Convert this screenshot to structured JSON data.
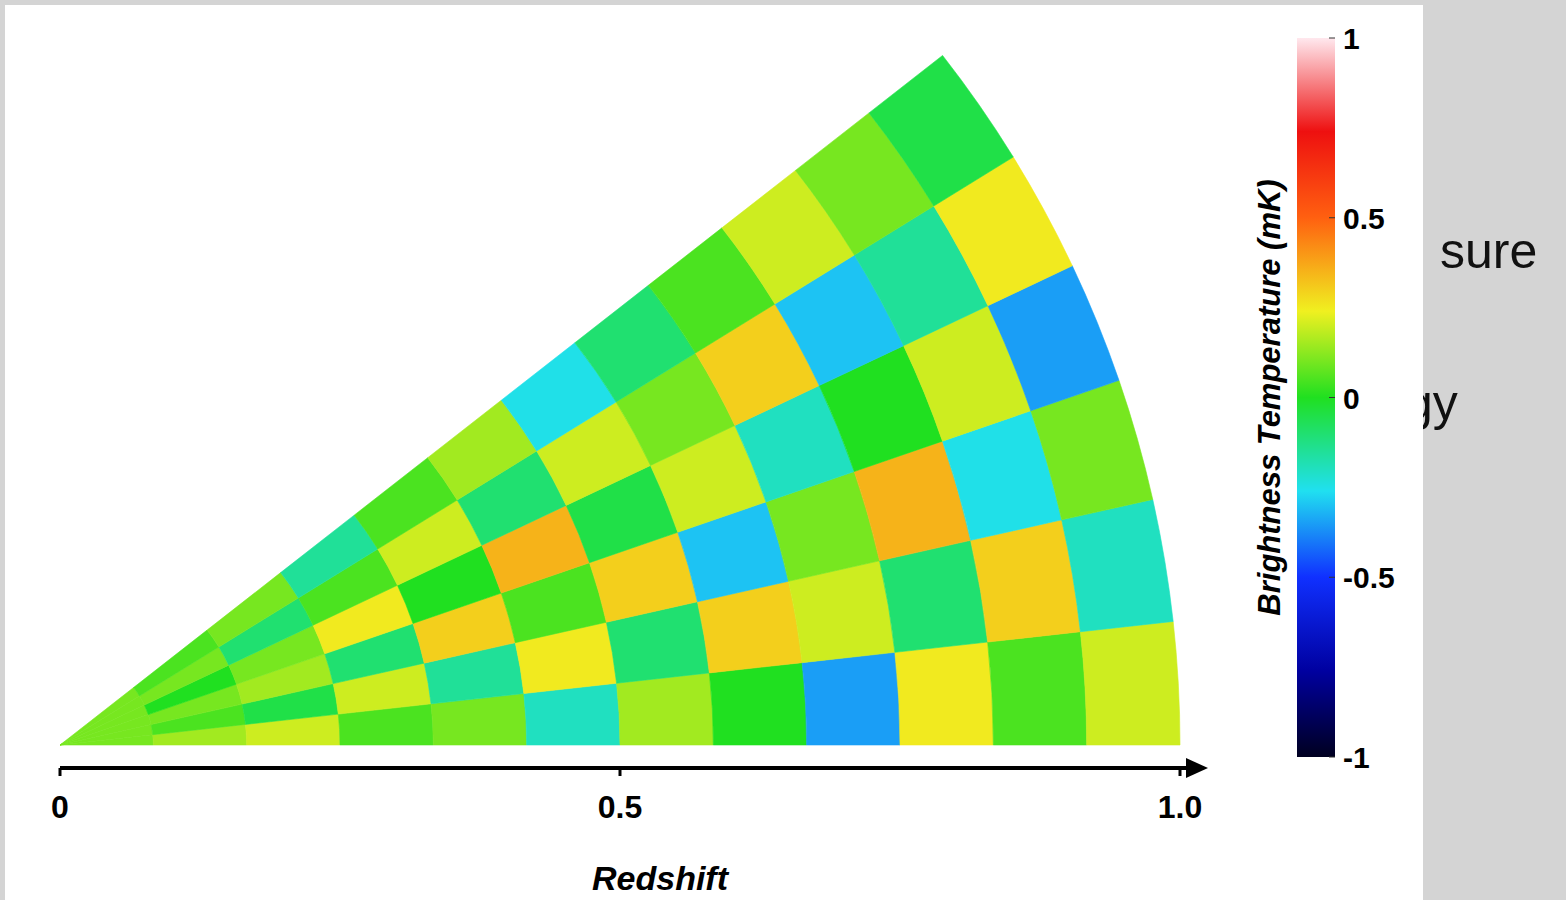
{
  "chart_data": {
    "type": "polar_heatmap",
    "x_label": "Redshift",
    "xlim": [
      0,
      1
    ],
    "xticks": [
      0,
      0.5,
      {
        "value": 1,
        "label": "1.0"
      }
    ],
    "cells": [
      [
        0.1,
        0.1,
        0.1,
        0.1,
        0.1,
        0.1
      ],
      [
        0.15,
        0.05,
        0.1,
        0.0,
        0.1,
        0.05
      ],
      [
        0.2,
        -0.05,
        0.15,
        0.1,
        -0.1,
        0.1
      ],
      [
        0.05,
        0.2,
        -0.1,
        0.25,
        0.05,
        -0.15
      ],
      [
        0.1,
        -0.15,
        0.3,
        0.0,
        0.2,
        0.05
      ],
      [
        -0.2,
        0.25,
        0.05,
        0.35,
        -0.1,
        0.15
      ],
      [
        0.15,
        -0.1,
        0.3,
        -0.05,
        0.2,
        -0.25
      ],
      [
        0.0,
        0.3,
        -0.3,
        0.2,
        0.1,
        -0.1
      ],
      [
        -0.35,
        0.2,
        0.1,
        -0.2,
        0.3,
        0.05
      ],
      [
        0.25,
        -0.1,
        0.35,
        0.0,
        -0.3,
        0.2
      ],
      [
        0.05,
        0.3,
        -0.25,
        0.2,
        -0.15,
        0.1
      ],
      [
        0.2,
        -0.2,
        0.1,
        -0.35,
        0.25,
        -0.05
      ]
    ],
    "colorbar": {
      "label": "Brightness Temperature (mK)",
      "range": [
        -1,
        1
      ],
      "ticks": [
        1,
        0.5,
        0,
        -0.5,
        -1
      ]
    },
    "annotations": [
      "sure",
      "gy"
    ]
  }
}
